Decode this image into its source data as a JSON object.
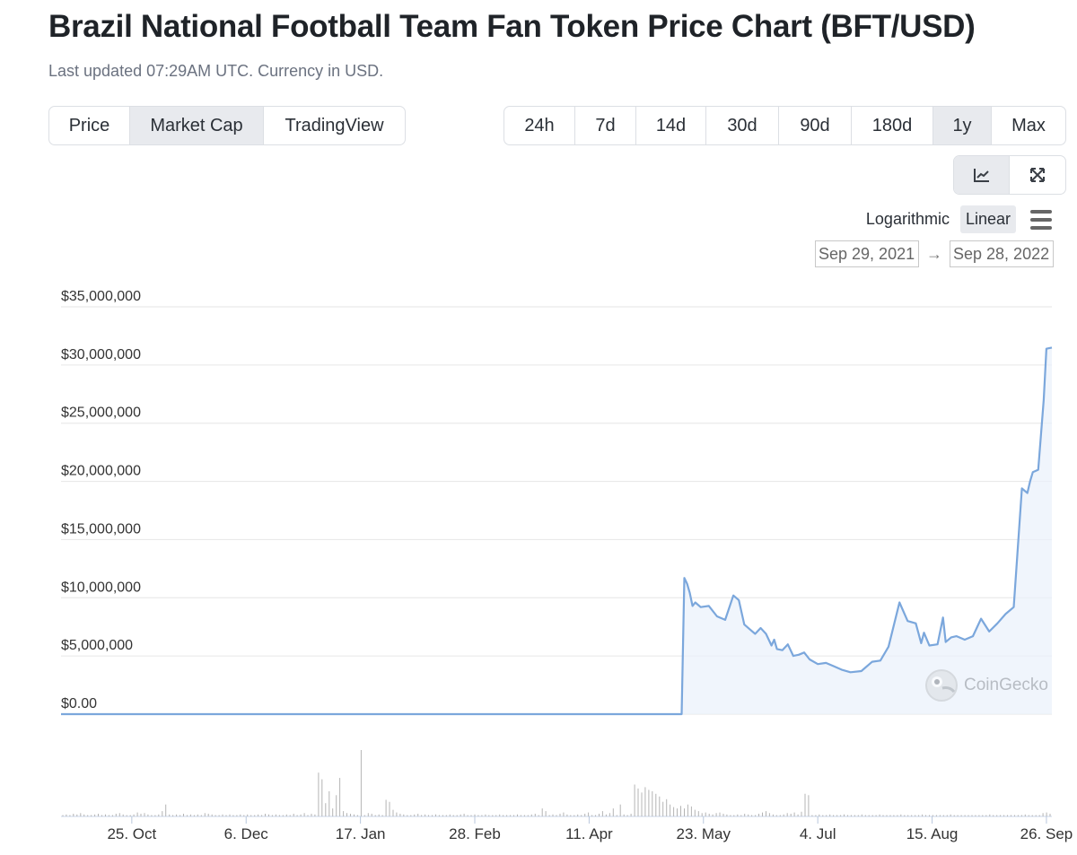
{
  "header": {
    "title": "Brazil National Football Team Fan Token Price Chart (BFT/USD)",
    "subtitle": "Last updated 07:29AM UTC. Currency in USD."
  },
  "chart_tabs": [
    {
      "label": "Price",
      "active": false
    },
    {
      "label": "Market Cap",
      "active": true
    },
    {
      "label": "TradingView",
      "active": false
    }
  ],
  "time_ranges": [
    {
      "label": "24h",
      "active": false
    },
    {
      "label": "7d",
      "active": false
    },
    {
      "label": "14d",
      "active": false
    },
    {
      "label": "30d",
      "active": false
    },
    {
      "label": "90d",
      "active": false
    },
    {
      "label": "180d",
      "active": false
    },
    {
      "label": "1y",
      "active": true
    },
    {
      "label": "Max",
      "active": false
    }
  ],
  "view_buttons": {
    "line_chart_icon": "line-chart-icon",
    "fullscreen_icon": "expand-icon",
    "active": "line"
  },
  "scale": {
    "logarithmic_label": "Logarithmic",
    "linear_label": "Linear",
    "active": "Linear",
    "menu_icon": "hamburger-menu-icon"
  },
  "date_range": {
    "start": "Sep 29, 2021",
    "arrow": "→",
    "end": "Sep 28, 2022"
  },
  "watermark": {
    "text": "CoinGecko",
    "icon": "coingecko-logo-icon"
  },
  "colors": {
    "line": "#7ba7dc",
    "fill": "#e9f1fb",
    "volume": "#b4b4b4",
    "grid": "#e6e6e6"
  },
  "chart_data": {
    "type": "line",
    "series": [
      {
        "x": [
          "2021-09-29",
          "2022-05-15",
          "2022-05-16",
          "2022-05-17",
          "2022-05-18",
          "2022-05-19",
          "2022-05-20",
          "2022-05-22",
          "2022-05-25",
          "2022-05-28",
          "2022-05-31",
          "2022-06-03",
          "2022-06-05",
          "2022-06-07",
          "2022-06-09",
          "2022-06-11",
          "2022-06-13",
          "2022-06-15",
          "2022-06-17",
          "2022-06-18",
          "2022-06-19",
          "2022-06-21",
          "2022-06-23",
          "2022-06-25",
          "2022-06-27",
          "2022-06-29",
          "2022-07-01",
          "2022-07-04",
          "2022-07-07",
          "2022-07-10",
          "2022-07-13",
          "2022-07-16",
          "2022-07-20",
          "2022-07-24",
          "2022-07-27",
          "2022-07-30",
          "2022-08-03",
          "2022-08-06",
          "2022-08-09",
          "2022-08-11",
          "2022-08-12",
          "2022-08-14",
          "2022-08-17",
          "2022-08-19",
          "2022-08-20",
          "2022-08-22",
          "2022-08-24",
          "2022-08-27",
          "2022-08-30",
          "2022-09-02",
          "2022-09-05",
          "2022-09-08",
          "2022-09-11",
          "2022-09-14",
          "2022-09-17",
          "2022-09-19",
          "2022-09-20",
          "2022-09-21",
          "2022-09-23",
          "2022-09-25",
          "2022-09-26",
          "2022-09-28"
        ],
        "values": [
          0,
          0,
          11700000,
          11200000,
          10400000,
          9300000,
          9600000,
          9200000,
          9300000,
          8400000,
          8100000,
          10200000,
          9800000,
          7700000,
          7300000,
          6900000,
          7400000,
          6900000,
          5900000,
          6400000,
          5600000,
          5500000,
          6000000,
          5000000,
          5100000,
          5300000,
          4700000,
          4300000,
          4400000,
          4100000,
          3800000,
          3600000,
          3700000,
          4500000,
          4600000,
          5800000,
          9600000,
          8000000,
          7800000,
          6100000,
          7000000,
          5900000,
          6000000,
          8300000,
          6200000,
          6600000,
          6700000,
          6400000,
          6700000,
          8200000,
          7100000,
          7800000,
          8600000,
          9200000,
          19400000,
          19000000,
          20000000,
          20800000,
          21000000,
          27000000,
          31400000,
          31500000
        ],
        "name": ""
      }
    ],
    "volume_relative": [
      0.02,
      0.03,
      0.02,
      0.04,
      0.03,
      0.05,
      0.03,
      0.02,
      0.02,
      0.03,
      0.04,
      0.02,
      0.03,
      0.02,
      0.02,
      0.04,
      0.05,
      0.03,
      0.02,
      0.02,
      0.03,
      0.06,
      0.04,
      0.05,
      0.03,
      0.02,
      0.02,
      0.03,
      0.08,
      0.18,
      0.03,
      0.02,
      0.03,
      0.02,
      0.04,
      0.02,
      0.03,
      0.02,
      0.03,
      0.02,
      0.05,
      0.04,
      0.03,
      0.02,
      0.02,
      0.03,
      0.02,
      0.03,
      0.02,
      0.02,
      0.03,
      0.02,
      0.03,
      0.02,
      0.02,
      0.03,
      0.02,
      0.04,
      0.03,
      0.02,
      0.03,
      0.02,
      0.02,
      0.03,
      0.02,
      0.04,
      0.02,
      0.03,
      0.05,
      0.02,
      0.04,
      0.03,
      0.66,
      0.56,
      0.2,
      0.38,
      0.12,
      0.32,
      0.58,
      0.08,
      0.05,
      0.04,
      0.03,
      0.02,
      1.0,
      0.02,
      0.05,
      0.04,
      0.02,
      0.03,
      0.02,
      0.25,
      0.22,
      0.1,
      0.06,
      0.04,
      0.03,
      0.02,
      0.02,
      0.03,
      0.04,
      0.02,
      0.03,
      0.02,
      0.02,
      0.03,
      0.02,
      0.02,
      0.02,
      0.03,
      0.02,
      0.02,
      0.03,
      0.04,
      0.02,
      0.02,
      0.03,
      0.02,
      0.02,
      0.03,
      0.02,
      0.02,
      0.02,
      0.03,
      0.02,
      0.02,
      0.02,
      0.02,
      0.03,
      0.02,
      0.02,
      0.02,
      0.03,
      0.04,
      0.02,
      0.12,
      0.08,
      0.02,
      0.03,
      0.02,
      0.04,
      0.06,
      0.03,
      0.02,
      0.02,
      0.03,
      0.02,
      0.04,
      0.06,
      0.02,
      0.02,
      0.04,
      0.08,
      0.03,
      0.05,
      0.12,
      0.02,
      0.18,
      0.03,
      0.02,
      0.04,
      0.48,
      0.42,
      0.36,
      0.44,
      0.4,
      0.38,
      0.34,
      0.3,
      0.22,
      0.26,
      0.18,
      0.14,
      0.12,
      0.16,
      0.12,
      0.18,
      0.15,
      0.1,
      0.08,
      0.05,
      0.06,
      0.04,
      0.03,
      0.05,
      0.06,
      0.04,
      0.03,
      0.02,
      0.02,
      0.03,
      0.02,
      0.04,
      0.03,
      0.02,
      0.02,
      0.04,
      0.06,
      0.08,
      0.05,
      0.03,
      0.02,
      0.02,
      0.03,
      0.05,
      0.04,
      0.06,
      0.03,
      0.07,
      0.34,
      0.32,
      0.02,
      0.02,
      0.03,
      0.02,
      0.02,
      0.03,
      0.02,
      0.02,
      0.02,
      0.03,
      0.02,
      0.02,
      0.02,
      0.02,
      0.03,
      0.02,
      0.02,
      0.02,
      0.02,
      0.03,
      0.02,
      0.02,
      0.02,
      0.02,
      0.02,
      0.03,
      0.02,
      0.02,
      0.02,
      0.02,
      0.02,
      0.03,
      0.02,
      0.02,
      0.02,
      0.02,
      0.02,
      0.02,
      0.02,
      0.03,
      0.02,
      0.02,
      0.02,
      0.02,
      0.02,
      0.02,
      0.02,
      0.02,
      0.02,
      0.02,
      0.03,
      0.02,
      0.02,
      0.02,
      0.02,
      0.02,
      0.02,
      0.02,
      0.02,
      0.02,
      0.03,
      0.02,
      0.02,
      0.02,
      0.02,
      0.05,
      0.06,
      0.04
    ],
    "y_ticks": [
      "$0.00",
      "$5,000,000",
      "$10,000,000",
      "$15,000,000",
      "$20,000,000",
      "$25,000,000",
      "$30,000,000",
      "$35,000,000"
    ],
    "y_tick_values": [
      0,
      5000000,
      10000000,
      15000000,
      20000000,
      25000000,
      30000000,
      35000000
    ],
    "x_ticks": [
      {
        "label": "25. Oct",
        "date": "2021-10-25"
      },
      {
        "label": "6. Dec",
        "date": "2021-12-06"
      },
      {
        "label": "17. Jan",
        "date": "2022-01-17"
      },
      {
        "label": "28. Feb",
        "date": "2022-02-28"
      },
      {
        "label": "11. Apr",
        "date": "2022-04-11"
      },
      {
        "label": "23. May",
        "date": "2022-05-23"
      },
      {
        "label": "4. Jul",
        "date": "2022-07-04"
      },
      {
        "label": "15. Aug",
        "date": "2022-08-15"
      },
      {
        "label": "26. Sep",
        "date": "2022-09-26"
      }
    ],
    "ylim": [
      0,
      35000000
    ],
    "xlim": [
      "2021-09-29",
      "2022-09-28"
    ],
    "grid": true,
    "title": "",
    "xlabel": "",
    "ylabel": ""
  }
}
